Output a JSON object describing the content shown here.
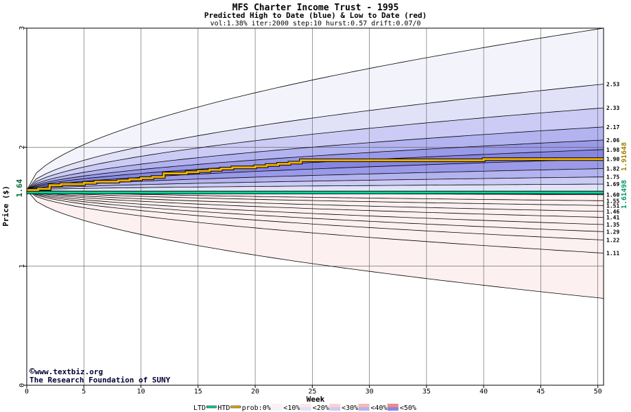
{
  "chart_data": {
    "type": "area",
    "title": "MFS Charter Income Trust - 1995",
    "subtitle": "Predicted High to Date (blue) &  Low to Date (red)",
    "params": "vol:1.38% iter:2000 step:10 hurst:0.57 drift:0.07/0",
    "xlabel": "Week",
    "ylabel": "Price ($)",
    "xlim": [
      0,
      50.5
    ],
    "ylim": [
      0,
      3
    ],
    "x_ticks": [
      0,
      5,
      10,
      15,
      20,
      25,
      30,
      35,
      40,
      45,
      50
    ],
    "y_ticks": [
      0,
      1,
      2,
      3
    ],
    "grid": true,
    "start_price": 1.64,
    "start_price_label": "1.64",
    "right_label_high": "1.91648",
    "right_label_low": "1.61498",
    "right_label_high_color": "#a08000",
    "right_label_low_color": "#009966",
    "end_levels": [
      "2.53",
      "2.33",
      "2.17",
      "2.06",
      "1.98",
      "1.90",
      "1.82",
      "1.75",
      "1.69",
      "1.60",
      "1.55",
      "1.51",
      "1.46",
      "1.41",
      "1.35",
      "1.29",
      "1.22",
      "1.11"
    ],
    "upper_bands": [
      {
        "end": 3.0,
        "fill": "#f3f3fc"
      },
      {
        "end": 2.53,
        "fill": "#e1e1f8"
      },
      {
        "end": 2.33,
        "fill": "#cbcbf5"
      },
      {
        "end": 2.17,
        "fill": "#b3b3f0"
      },
      {
        "end": 2.06,
        "fill": "#9a9ae8"
      },
      {
        "end": 1.98,
        "fill": "#8686e2"
      },
      {
        "end": 1.9,
        "fill": "#9a9ae8"
      },
      {
        "end": 1.82,
        "fill": "#b3b3f0"
      },
      {
        "end": 1.75,
        "fill": "#cbcbf5"
      },
      {
        "end": 1.69,
        "fill": "#e1e1f8"
      }
    ],
    "lower_bands": [
      {
        "end": 1.6,
        "fill": "#fde6e6"
      },
      {
        "end": 1.55,
        "fill": "#fbd2d2"
      },
      {
        "end": 1.51,
        "fill": "#f8b8b8"
      },
      {
        "end": 1.46,
        "fill": "#f4a0a0"
      },
      {
        "end": 1.41,
        "fill": "#f08a8a"
      },
      {
        "end": 1.35,
        "fill": "#f4a0a0"
      },
      {
        "end": 1.29,
        "fill": "#f8b8b8"
      },
      {
        "end": 1.22,
        "fill": "#fbd2d2"
      },
      {
        "end": 1.11,
        "fill": "#fde6e6"
      },
      {
        "end": 0.73,
        "fill": "#fdf0f0"
      }
    ],
    "htd_line": {
      "x": [
        0,
        1,
        2,
        3,
        4,
        5,
        6,
        7,
        8,
        9,
        10,
        11,
        12,
        13,
        14,
        15,
        16,
        17,
        18,
        19,
        20,
        21,
        22,
        23,
        24,
        25,
        30,
        35,
        40,
        45,
        50.5
      ],
      "y": [
        1.64,
        1.65,
        1.68,
        1.69,
        1.69,
        1.7,
        1.71,
        1.71,
        1.72,
        1.73,
        1.74,
        1.75,
        1.78,
        1.78,
        1.79,
        1.8,
        1.81,
        1.82,
        1.83,
        1.83,
        1.84,
        1.85,
        1.86,
        1.87,
        1.89,
        1.89,
        1.89,
        1.89,
        1.9,
        1.9,
        1.9
      ]
    },
    "ltd_line": {
      "y": 1.62
    },
    "legend": [
      "LTD",
      "HTD",
      "prob:0%",
      "<10%",
      "<20%",
      "<30%",
      "<40%",
      "<50%"
    ],
    "legend_swatches": [
      "#f3f3fc",
      "#e1e1f8",
      "#cbcbf5",
      "#b3b3f0",
      "#8686e2"
    ],
    "legend_swatches_red": [
      "#fdf0f0",
      "#fde6e6",
      "#fbd2d2",
      "#f8b8b8",
      "#f08a8a"
    ]
  },
  "watermark": {
    "site": "www.textbiz.org",
    "org": "The Research Foundation of SUNY"
  }
}
